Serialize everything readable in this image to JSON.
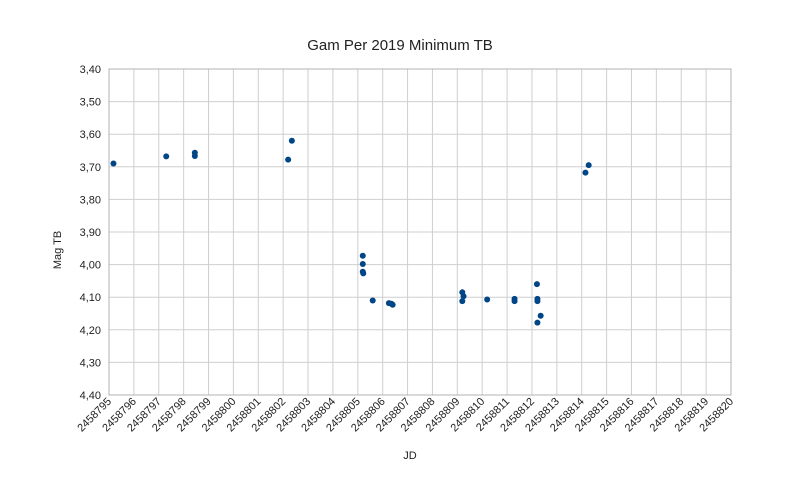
{
  "chart_data": {
    "type": "scatter",
    "title": "Gam Per 2019 Minimum TB",
    "xlabel": "JD",
    "ylabel": "Mag TB",
    "xlim": [
      2458795,
      2458820
    ],
    "ylim": [
      3.4,
      4.4
    ],
    "y_inverted": true,
    "grid": true,
    "legend": "none",
    "marker_color": "#004586",
    "x_ticks": [
      "2458795",
      "2458796",
      "2458797",
      "2458798",
      "2458799",
      "2458800",
      "2458801",
      "2458802",
      "2458803",
      "2458804",
      "2458805",
      "2458806",
      "2458807",
      "2458808",
      "2458809",
      "2458810",
      "2458811",
      "2458812",
      "2458813",
      "2458814",
      "2458815",
      "2458816",
      "2458817",
      "2458818",
      "2458819",
      "2458820"
    ],
    "y_ticks": [
      "3,40",
      "3,50",
      "3,60",
      "3,70",
      "3,80",
      "3,90",
      "4,00",
      "4,10",
      "4,20",
      "4,30",
      "4,40"
    ],
    "points": [
      {
        "x": 2458795.18,
        "y": 3.69
      },
      {
        "x": 2458797.3,
        "y": 3.668
      },
      {
        "x": 2458798.45,
        "y": 3.657
      },
      {
        "x": 2458798.45,
        "y": 3.667
      },
      {
        "x": 2458802.2,
        "y": 3.678
      },
      {
        "x": 2458802.35,
        "y": 3.62
      },
      {
        "x": 2458805.2,
        "y": 3.973
      },
      {
        "x": 2458805.2,
        "y": 3.998
      },
      {
        "x": 2458805.2,
        "y": 4.022
      },
      {
        "x": 2458805.22,
        "y": 4.027
      },
      {
        "x": 2458805.6,
        "y": 4.11
      },
      {
        "x": 2458806.25,
        "y": 4.118
      },
      {
        "x": 2458806.35,
        "y": 4.12
      },
      {
        "x": 2458806.4,
        "y": 4.123
      },
      {
        "x": 2458809.2,
        "y": 4.085
      },
      {
        "x": 2458809.25,
        "y": 4.097
      },
      {
        "x": 2458809.2,
        "y": 4.112
      },
      {
        "x": 2458810.2,
        "y": 4.107
      },
      {
        "x": 2458811.3,
        "y": 4.105
      },
      {
        "x": 2458811.3,
        "y": 4.112
      },
      {
        "x": 2458812.2,
        "y": 4.06
      },
      {
        "x": 2458812.22,
        "y": 4.105
      },
      {
        "x": 2458812.22,
        "y": 4.112
      },
      {
        "x": 2458812.35,
        "y": 4.157
      },
      {
        "x": 2458812.22,
        "y": 4.178
      },
      {
        "x": 2458814.15,
        "y": 3.718
      },
      {
        "x": 2458814.28,
        "y": 3.695
      }
    ]
  }
}
